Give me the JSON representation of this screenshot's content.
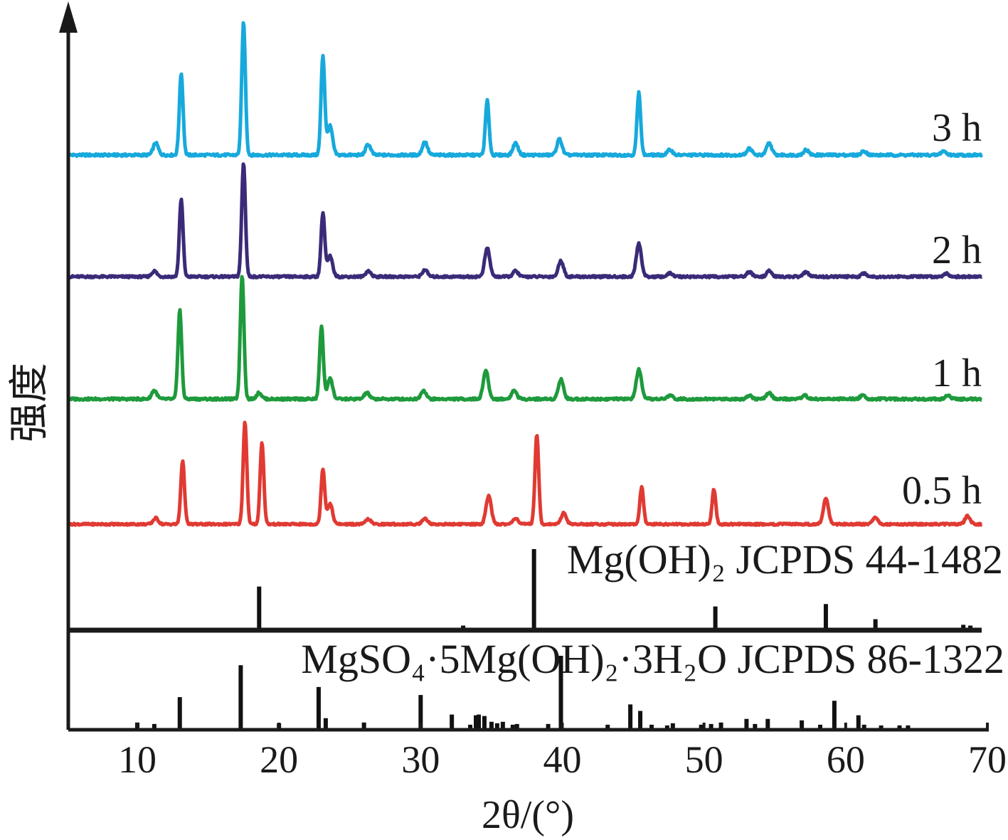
{
  "chart_data": {
    "type": "line",
    "title": "",
    "xlabel": "2θ/(°)",
    "ylabel": "强度",
    "xlim": [
      5,
      70
    ],
    "xticks": [
      "10",
      "20",
      "30",
      "40",
      "50",
      "60",
      "70"
    ],
    "grid": false,
    "legend": "labels at right end of each pattern",
    "series": [
      {
        "name": "3 h",
        "color": "#17a9dc",
        "peaks": [
          {
            "x": 11.3,
            "h": 0.09
          },
          {
            "x": 13.1,
            "h": 0.62
          },
          {
            "x": 17.5,
            "h": 1.0
          },
          {
            "x": 23.1,
            "h": 0.75
          },
          {
            "x": 23.6,
            "h": 0.22
          },
          {
            "x": 26.3,
            "h": 0.08
          },
          {
            "x": 30.3,
            "h": 0.1
          },
          {
            "x": 34.7,
            "h": 0.41
          },
          {
            "x": 36.7,
            "h": 0.09
          },
          {
            "x": 39.8,
            "h": 0.12
          },
          {
            "x": 45.4,
            "h": 0.47
          },
          {
            "x": 47.6,
            "h": 0.04
          },
          {
            "x": 53.2,
            "h": 0.05
          },
          {
            "x": 54.6,
            "h": 0.09
          },
          {
            "x": 57.2,
            "h": 0.04
          },
          {
            "x": 61.3,
            "h": 0.03
          },
          {
            "x": 66.9,
            "h": 0.03
          }
        ]
      },
      {
        "name": "2 h",
        "color": "#3b2a78",
        "peaks": [
          {
            "x": 11.2,
            "h": 0.05
          },
          {
            "x": 13.1,
            "h": 0.68
          },
          {
            "x": 17.5,
            "h": 1.0
          },
          {
            "x": 23.1,
            "h": 0.56
          },
          {
            "x": 23.6,
            "h": 0.18
          },
          {
            "x": 26.3,
            "h": 0.05
          },
          {
            "x": 30.3,
            "h": 0.06
          },
          {
            "x": 34.7,
            "h": 0.25
          },
          {
            "x": 36.7,
            "h": 0.05
          },
          {
            "x": 39.9,
            "h": 0.14
          },
          {
            "x": 45.4,
            "h": 0.29
          },
          {
            "x": 47.6,
            "h": 0.03
          },
          {
            "x": 53.2,
            "h": 0.04
          },
          {
            "x": 54.6,
            "h": 0.05
          },
          {
            "x": 57.2,
            "h": 0.04
          },
          {
            "x": 61.3,
            "h": 0.03
          },
          {
            "x": 67.1,
            "h": 0.03
          }
        ]
      },
      {
        "name": "1 h",
        "color": "#1e9a3c",
        "peaks": [
          {
            "x": 11.2,
            "h": 0.07
          },
          {
            "x": 13.0,
            "h": 0.72
          },
          {
            "x": 17.4,
            "h": 1.0
          },
          {
            "x": 18.6,
            "h": 0.05
          },
          {
            "x": 23.0,
            "h": 0.59
          },
          {
            "x": 23.6,
            "h": 0.17
          },
          {
            "x": 26.2,
            "h": 0.05
          },
          {
            "x": 30.2,
            "h": 0.07
          },
          {
            "x": 34.6,
            "h": 0.23
          },
          {
            "x": 36.6,
            "h": 0.07
          },
          {
            "x": 39.9,
            "h": 0.16
          },
          {
            "x": 45.4,
            "h": 0.24
          },
          {
            "x": 47.6,
            "h": 0.03
          },
          {
            "x": 53.2,
            "h": 0.03
          },
          {
            "x": 54.6,
            "h": 0.05
          },
          {
            "x": 57.1,
            "h": 0.03
          },
          {
            "x": 61.2,
            "h": 0.03
          },
          {
            "x": 67.2,
            "h": 0.03
          }
        ]
      },
      {
        "name": "0.5 h",
        "color": "#e03a33",
        "peaks": [
          {
            "x": 11.3,
            "h": 0.06
          },
          {
            "x": 13.2,
            "h": 0.62
          },
          {
            "x": 17.6,
            "h": 1.0
          },
          {
            "x": 18.8,
            "h": 0.8
          },
          {
            "x": 23.1,
            "h": 0.54
          },
          {
            "x": 23.6,
            "h": 0.2
          },
          {
            "x": 26.3,
            "h": 0.05
          },
          {
            "x": 30.3,
            "h": 0.06
          },
          {
            "x": 34.8,
            "h": 0.28
          },
          {
            "x": 36.7,
            "h": 0.06
          },
          {
            "x": 38.2,
            "h": 0.88
          },
          {
            "x": 40.1,
            "h": 0.11
          },
          {
            "x": 45.6,
            "h": 0.36
          },
          {
            "x": 50.7,
            "h": 0.34
          },
          {
            "x": 58.6,
            "h": 0.25
          },
          {
            "x": 62.1,
            "h": 0.07
          },
          {
            "x": 68.6,
            "h": 0.08
          }
        ]
      }
    ],
    "references": [
      {
        "name": "Mg(OH)₂ JCPDS 44-1482",
        "lines": [
          {
            "x": 18.6,
            "h": 0.53
          },
          {
            "x": 33.0,
            "h": 0.04
          },
          {
            "x": 38.0,
            "h": 1.0
          },
          {
            "x": 50.8,
            "h": 0.28
          },
          {
            "x": 58.6,
            "h": 0.31
          },
          {
            "x": 62.1,
            "h": 0.12
          },
          {
            "x": 68.3,
            "h": 0.05
          },
          {
            "x": 68.8,
            "h": 0.04
          }
        ]
      },
      {
        "name": "MgSO₄·5Mg(OH)₂·3H₂O JCPDS 86-1322",
        "lines": [
          {
            "x": 10.0,
            "h": 0.08
          },
          {
            "x": 11.2,
            "h": 0.06
          },
          {
            "x": 13.0,
            "h": 0.43
          },
          {
            "x": 17.3,
            "h": 0.87
          },
          {
            "x": 20.0,
            "h": 0.07
          },
          {
            "x": 22.8,
            "h": 0.57
          },
          {
            "x": 23.3,
            "h": 0.14
          },
          {
            "x": 26.0,
            "h": 0.08
          },
          {
            "x": 30.0,
            "h": 0.46
          },
          {
            "x": 32.2,
            "h": 0.19
          },
          {
            "x": 33.5,
            "h": 0.05
          },
          {
            "x": 33.9,
            "h": 0.18
          },
          {
            "x": 34.1,
            "h": 0.19
          },
          {
            "x": 34.5,
            "h": 0.17
          },
          {
            "x": 35.0,
            "h": 0.09
          },
          {
            "x": 35.4,
            "h": 0.07
          },
          {
            "x": 35.8,
            "h": 0.09
          },
          {
            "x": 36.5,
            "h": 0.05
          },
          {
            "x": 36.8,
            "h": 0.06
          },
          {
            "x": 39.0,
            "h": 0.06
          },
          {
            "x": 39.9,
            "h": 1.0
          },
          {
            "x": 43.2,
            "h": 0.05
          },
          {
            "x": 44.8,
            "h": 0.33
          },
          {
            "x": 45.5,
            "h": 0.24
          },
          {
            "x": 46.3,
            "h": 0.05
          },
          {
            "x": 47.4,
            "h": 0.04
          },
          {
            "x": 47.8,
            "h": 0.07
          },
          {
            "x": 49.8,
            "h": 0.05
          },
          {
            "x": 50.5,
            "h": 0.06
          },
          {
            "x": 51.2,
            "h": 0.08
          },
          {
            "x": 53.0,
            "h": 0.13
          },
          {
            "x": 53.6,
            "h": 0.06
          },
          {
            "x": 54.5,
            "h": 0.13
          },
          {
            "x": 56.9,
            "h": 0.11
          },
          {
            "x": 58.2,
            "h": 0.05
          },
          {
            "x": 59.2,
            "h": 0.38
          },
          {
            "x": 60.9,
            "h": 0.18
          },
          {
            "x": 61.3,
            "h": 0.05
          },
          {
            "x": 62.5,
            "h": 0.04
          },
          {
            "x": 63.8,
            "h": 0.04
          },
          {
            "x": 64.4,
            "h": 0.04
          }
        ]
      }
    ]
  }
}
